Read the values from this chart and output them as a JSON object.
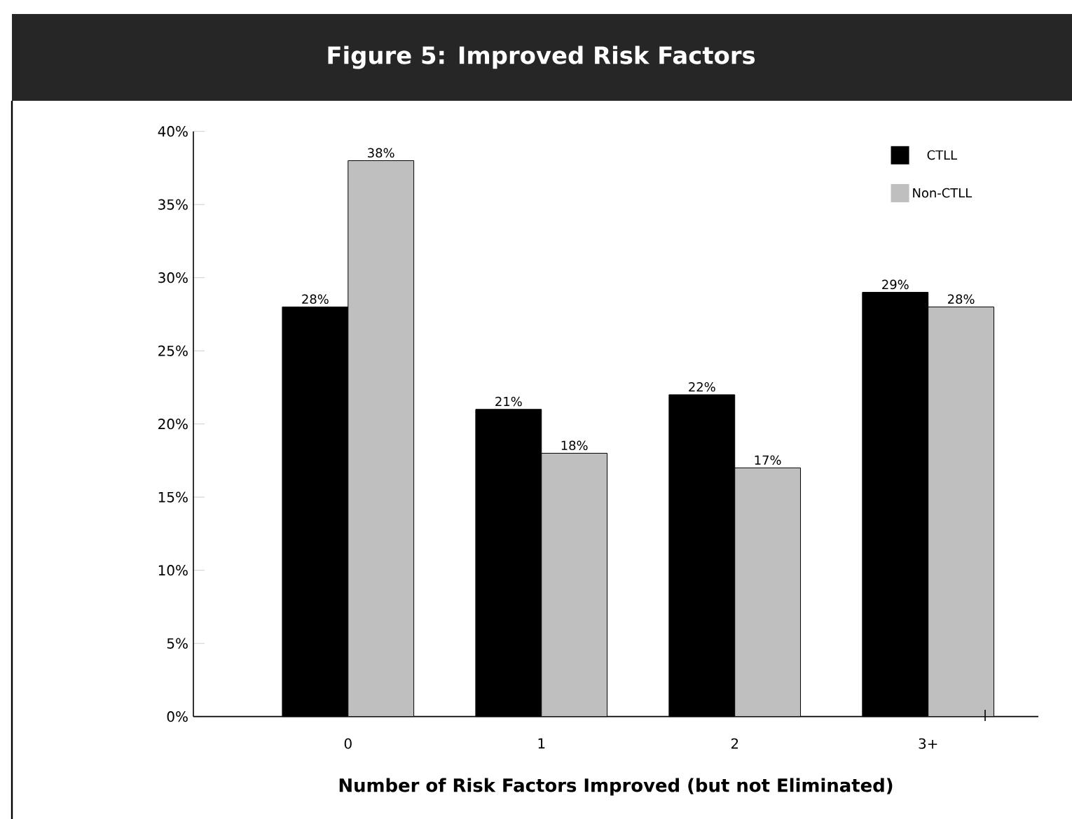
{
  "chart_data": {
    "type": "bar",
    "title": "**Figure 5: Improved Risk Factors**",
    "xlabel": "**Number of Risk Factors Improved (but not Eliminated)**",
    "categories": [
      "0",
      "1",
      "2",
      "3+"
    ],
    "series": [
      {
        "name": "CTLL",
        "color": "#000000",
        "values": [
          28,
          21,
          22,
          29
        ],
        "value_labels": [
          "28%",
          "21%",
          "22%",
          "29%"
        ]
      },
      {
        "name": "Non-CTLL",
        "color": "#bfbfbf",
        "values": [
          38,
          18,
          17,
          28
        ],
        "value_labels": [
          "38%",
          "18%",
          "17%",
          "28%"
        ]
      }
    ],
    "ylim": [
      0,
      40
    ],
    "yticks": [
      {
        "value": 0,
        "label": "0%"
      },
      {
        "value": 5,
        "label": "5%"
      },
      {
        "value": 10,
        "label": "10%"
      },
      {
        "value": 15,
        "label": "15%"
      },
      {
        "value": 20,
        "label": "20%"
      },
      {
        "value": 25,
        "label": "25%"
      },
      {
        "value": 30,
        "label": "30%"
      },
      {
        "value": 35,
        "label": "35%"
      },
      {
        "value": 40,
        "label": "40%"
      }
    ],
    "grid": false,
    "legend": "top right"
  }
}
